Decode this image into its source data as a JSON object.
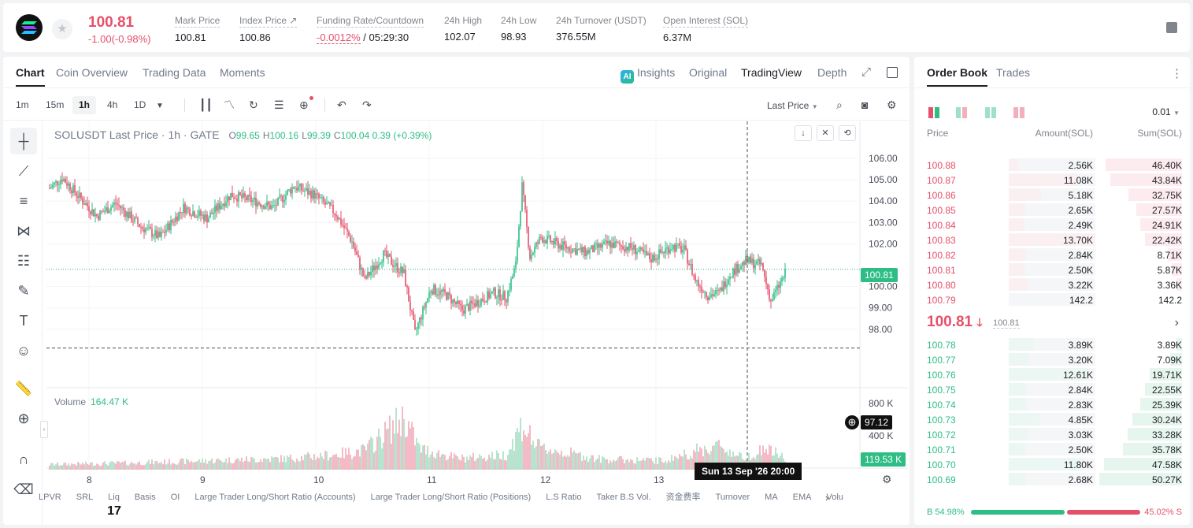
{
  "ticker": {
    "last_price": "100.81",
    "change": "-1.00(-0.98%)",
    "stats": [
      {
        "label": "Mark Price",
        "value": "100.81"
      },
      {
        "label": "Index Price ↗",
        "value": "100.86"
      },
      {
        "label": "Funding Rate/Countdown",
        "value": "-0.0012%",
        "value2": " / 05:29:30"
      },
      {
        "label": "24h High",
        "value": "102.07"
      },
      {
        "label": "24h Low",
        "value": "98.93"
      },
      {
        "label": "24h Turnover (USDT)",
        "value": "376.55M"
      },
      {
        "label": "Open Interest (SOL)",
        "value": "6.37M"
      }
    ]
  },
  "chart_tabs": [
    "Chart",
    "Coin Overview",
    "Trading Data",
    "Moments"
  ],
  "view_tabs": [
    "Insights",
    "Original",
    "TradingView",
    "Depth"
  ],
  "ai_badge": "AI",
  "intervals": [
    "1m",
    "15m",
    "1h",
    "4h",
    "1D"
  ],
  "price_source": "Last Price",
  "legend": {
    "title": "SOLUSDT Last Price · 1h · GATE",
    "o_label": "O",
    "o": "99.65",
    "h_label": "H",
    "h": "100.16",
    "l_label": "L",
    "l": "99.39",
    "c_label": "C",
    "c": "100.04",
    "change": "0.39 (+0.39%)"
  },
  "volume_legend": {
    "label": "Volume",
    "value": "164.47 K"
  },
  "price_tags": {
    "last": "100.81",
    "cursor": "97.12",
    "volume": "119.53 K"
  },
  "crosshair_label": "Sun 13 Sep '26   20:00",
  "tv_logo": "17",
  "indicators": [
    "LPVR",
    "SRL",
    "Liq",
    "Basis",
    "OI",
    "Large Trader Long/Short Ratio (Accounts)",
    "Large Trader Long/Short Ratio (Positions)",
    "L.S Ratio",
    "Taker B.S Vol.",
    "资金费率",
    "Turnover",
    "MA",
    "EMA",
    "Volu"
  ],
  "chart_data": {
    "type": "candlestick",
    "title": "SOLUSDT Last Price · 1h · GATE",
    "y_axis": {
      "ticks": [
        "106.00",
        "105.00",
        "104.00",
        "103.00",
        "102.00",
        "100.00",
        "99.00",
        "98.00"
      ],
      "range": [
        96.0,
        106.7
      ]
    },
    "volume_axis": {
      "ticks": [
        "800 K",
        "400 K"
      ]
    },
    "x_ticks": [
      "8",
      "9",
      "10",
      "11",
      "12",
      "13"
    ],
    "key_levels": {
      "last_price": 100.81,
      "cursor_price": 97.12
    },
    "close_path": [
      [
        0,
        104.6
      ],
      [
        8,
        105.1
      ],
      [
        20,
        104.1
      ],
      [
        30,
        103.3
      ],
      [
        42,
        103.9
      ],
      [
        58,
        102.8
      ],
      [
        70,
        102.3
      ],
      [
        85,
        103.7
      ],
      [
        100,
        103.2
      ],
      [
        115,
        104.3
      ],
      [
        130,
        104.0
      ],
      [
        142,
        103.7
      ],
      [
        155,
        104.7
      ],
      [
        168,
        104.3
      ],
      [
        182,
        103.4
      ],
      [
        192,
        102.1
      ],
      [
        200,
        100.3
      ],
      [
        212,
        101.5
      ],
      [
        225,
        100.6
      ],
      [
        232,
        97.8
      ],
      [
        242,
        99.9
      ],
      [
        252,
        99.6
      ],
      [
        262,
        98.9
      ],
      [
        272,
        99.3
      ],
      [
        282,
        99.7
      ],
      [
        290,
        99.5
      ],
      [
        296,
        101.0
      ],
      [
        300,
        104.7
      ],
      [
        305,
        101.4
      ],
      [
        312,
        102.3
      ],
      [
        325,
        101.9
      ],
      [
        340,
        101.6
      ],
      [
        355,
        102.0
      ],
      [
        370,
        101.8
      ],
      [
        382,
        101.3
      ],
      [
        395,
        101.9
      ],
      [
        403,
        101.7
      ],
      [
        410,
        100.3
      ],
      [
        418,
        99.6
      ],
      [
        425,
        99.7
      ],
      [
        432,
        100.6
      ],
      [
        442,
        101.2
      ],
      [
        452,
        101.0
      ],
      [
        458,
        99.3
      ],
      [
        467,
        100.6
      ]
    ],
    "volume_path": [
      [
        0,
        70
      ],
      [
        50,
        90
      ],
      [
        100,
        120
      ],
      [
        150,
        150
      ],
      [
        180,
        200
      ],
      [
        200,
        260
      ],
      [
        225,
        700
      ],
      [
        235,
        280
      ],
      [
        260,
        150
      ],
      [
        290,
        200
      ],
      [
        300,
        610
      ],
      [
        310,
        300
      ],
      [
        350,
        140
      ],
      [
        390,
        120
      ],
      [
        410,
        250
      ],
      [
        425,
        320
      ],
      [
        440,
        160
      ],
      [
        455,
        280
      ],
      [
        467,
        160
      ]
    ]
  },
  "orderbook": {
    "tabs": [
      "Order Book",
      "Trades"
    ],
    "precision": "0.01",
    "headers": {
      "price": "Price",
      "amount": "Amount(SOL)",
      "sum": "Sum(SOL)"
    },
    "asks": [
      {
        "price": "100.88",
        "amount": "2.56K",
        "sum": "46.40K",
        "depth": 0.92,
        "amt_frac": 0.12
      },
      {
        "price": "100.87",
        "amount": "11.08K",
        "sum": "43.84K",
        "depth": 0.87,
        "amt_frac": 0.8
      },
      {
        "price": "100.86",
        "amount": "5.18K",
        "sum": "32.75K",
        "depth": 0.65,
        "amt_frac": 0.37
      },
      {
        "price": "100.85",
        "amount": "2.65K",
        "sum": "27.57K",
        "depth": 0.55,
        "amt_frac": 0.19
      },
      {
        "price": "100.84",
        "amount": "2.49K",
        "sum": "24.91K",
        "depth": 0.5,
        "amt_frac": 0.18
      },
      {
        "price": "100.83",
        "amount": "13.70K",
        "sum": "22.42K",
        "depth": 0.45,
        "amt_frac": 1.0
      },
      {
        "price": "100.82",
        "amount": "2.84K",
        "sum": "8.71K",
        "depth": 0.17,
        "amt_frac": 0.2
      },
      {
        "price": "100.81",
        "amount": "2.50K",
        "sum": "5.87K",
        "depth": 0.12,
        "amt_frac": 0.18
      },
      {
        "price": "100.80",
        "amount": "3.22K",
        "sum": "3.36K",
        "depth": 0.07,
        "amt_frac": 0.23
      },
      {
        "price": "100.79",
        "amount": "142.2",
        "sum": "142.2",
        "depth": 0.0,
        "amt_frac": 0.01
      }
    ],
    "mid": {
      "price": "100.81",
      "mark": "100.81"
    },
    "bids": [
      {
        "price": "100.78",
        "amount": "3.89K",
        "sum": "3.89K",
        "depth": 0.07,
        "amt_frac": 0.28
      },
      {
        "price": "100.77",
        "amount": "3.20K",
        "sum": "7.09K",
        "depth": 0.14,
        "amt_frac": 0.23
      },
      {
        "price": "100.76",
        "amount": "12.61K",
        "sum": "19.71K",
        "depth": 0.39,
        "amt_frac": 0.92
      },
      {
        "price": "100.75",
        "amount": "2.84K",
        "sum": "22.55K",
        "depth": 0.45,
        "amt_frac": 0.2
      },
      {
        "price": "100.74",
        "amount": "2.83K",
        "sum": "25.39K",
        "depth": 0.5,
        "amt_frac": 0.2
      },
      {
        "price": "100.73",
        "amount": "4.85K",
        "sum": "30.24K",
        "depth": 0.6,
        "amt_frac": 0.35
      },
      {
        "price": "100.72",
        "amount": "3.03K",
        "sum": "33.28K",
        "depth": 0.66,
        "amt_frac": 0.22
      },
      {
        "price": "100.71",
        "amount": "2.50K",
        "sum": "35.78K",
        "depth": 0.71,
        "amt_frac": 0.18
      },
      {
        "price": "100.70",
        "amount": "11.80K",
        "sum": "47.58K",
        "depth": 0.94,
        "amt_frac": 0.86
      },
      {
        "price": "100.69",
        "amount": "2.68K",
        "sum": "50.27K",
        "depth": 1.0,
        "amt_frac": 0.19
      }
    ],
    "ratio": {
      "buy": "B 54.98%",
      "sell": "45.02% S",
      "buy_frac": 0.5498
    }
  },
  "colors": {
    "up": "#2dbd85",
    "down": "#e5506a",
    "up_volume": "#a6dcc3",
    "down_volume": "#f2a9b8",
    "text": "#1e2026",
    "muted": "#707a8a"
  }
}
